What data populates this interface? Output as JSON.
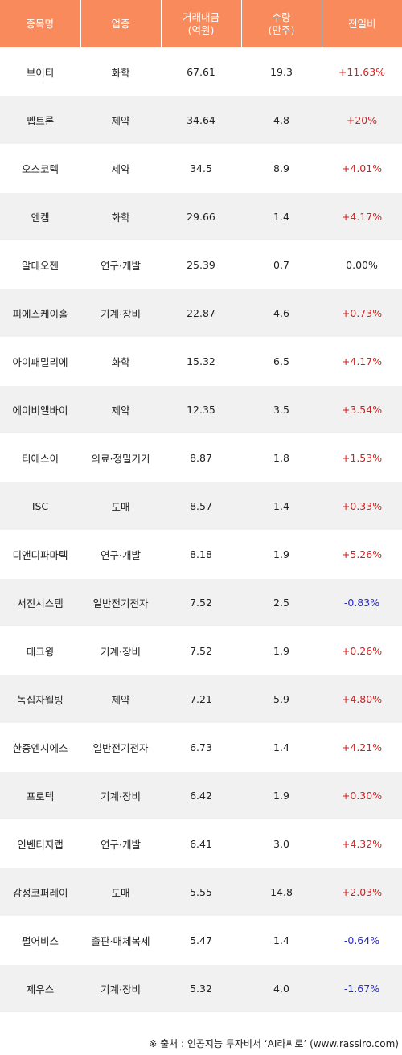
{
  "header": {
    "name": "종목명",
    "sector": "업종",
    "amount_line1": "거래대금",
    "amount_line2": "(억원)",
    "volume_line1": "수량",
    "volume_line2": "(만주)",
    "change": "전일비"
  },
  "rows": [
    {
      "name": "브이티",
      "sector": "화학",
      "amount": "67.61",
      "volume": "19.3",
      "change": "+11.63%",
      "dir": "up"
    },
    {
      "name": "펩트론",
      "sector": "제약",
      "amount": "34.64",
      "volume": "4.8",
      "change": "+20%",
      "dir": "up"
    },
    {
      "name": "오스코텍",
      "sector": "제약",
      "amount": "34.5",
      "volume": "8.9",
      "change": "+4.01%",
      "dir": "up"
    },
    {
      "name": "엔켐",
      "sector": "화학",
      "amount": "29.66",
      "volume": "1.4",
      "change": "+4.17%",
      "dir": "up"
    },
    {
      "name": "알테오젠",
      "sector": "연구·개발",
      "amount": "25.39",
      "volume": "0.7",
      "change": "0.00%",
      "dir": "flat"
    },
    {
      "name": "피에스케이홀",
      "sector": "기계·장비",
      "amount": "22.87",
      "volume": "4.6",
      "change": "+0.73%",
      "dir": "up"
    },
    {
      "name": "아이패밀리에",
      "sector": "화학",
      "amount": "15.32",
      "volume": "6.5",
      "change": "+4.17%",
      "dir": "up"
    },
    {
      "name": "에이비엘바이",
      "sector": "제약",
      "amount": "12.35",
      "volume": "3.5",
      "change": "+3.54%",
      "dir": "up"
    },
    {
      "name": "티에스이",
      "sector": "의료·정밀기기",
      "amount": "8.87",
      "volume": "1.8",
      "change": "+1.53%",
      "dir": "up"
    },
    {
      "name": "ISC",
      "sector": "도매",
      "amount": "8.57",
      "volume": "1.4",
      "change": "+0.33%",
      "dir": "up"
    },
    {
      "name": "디앤디파마텍",
      "sector": "연구·개발",
      "amount": "8.18",
      "volume": "1.9",
      "change": "+5.26%",
      "dir": "up"
    },
    {
      "name": "서진시스템",
      "sector": "일반전기전자",
      "amount": "7.52",
      "volume": "2.5",
      "change": "-0.83%",
      "dir": "down"
    },
    {
      "name": "테크윙",
      "sector": "기계·장비",
      "amount": "7.52",
      "volume": "1.9",
      "change": "+0.26%",
      "dir": "up"
    },
    {
      "name": "녹십자웰빙",
      "sector": "제약",
      "amount": "7.21",
      "volume": "5.9",
      "change": "+4.80%",
      "dir": "up"
    },
    {
      "name": "한중엔시에스",
      "sector": "일반전기전자",
      "amount": "6.73",
      "volume": "1.4",
      "change": "+4.21%",
      "dir": "up"
    },
    {
      "name": "프로텍",
      "sector": "기계·장비",
      "amount": "6.42",
      "volume": "1.9",
      "change": "+0.30%",
      "dir": "up"
    },
    {
      "name": "인벤티지랩",
      "sector": "연구·개발",
      "amount": "6.41",
      "volume": "3.0",
      "change": "+4.32%",
      "dir": "up"
    },
    {
      "name": "감성코퍼레이",
      "sector": "도매",
      "amount": "5.55",
      "volume": "14.8",
      "change": "+2.03%",
      "dir": "up"
    },
    {
      "name": "펄어비스",
      "sector": "출판·매체복제",
      "amount": "5.47",
      "volume": "1.4",
      "change": "-0.64%",
      "dir": "down"
    },
    {
      "name": "제우스",
      "sector": "기계·장비",
      "amount": "5.32",
      "volume": "4.0",
      "change": "-1.67%",
      "dir": "down"
    }
  ],
  "footer": {
    "source": "※ 출처 : 인공지능 투자비서 ‘AI라씨로’ (www.rassiro.com)"
  },
  "colors": {
    "header_bg": "#f88a5c",
    "row_alt_bg": "#f1f1f1",
    "up": "#d81e1e",
    "down": "#2a2ac8"
  }
}
